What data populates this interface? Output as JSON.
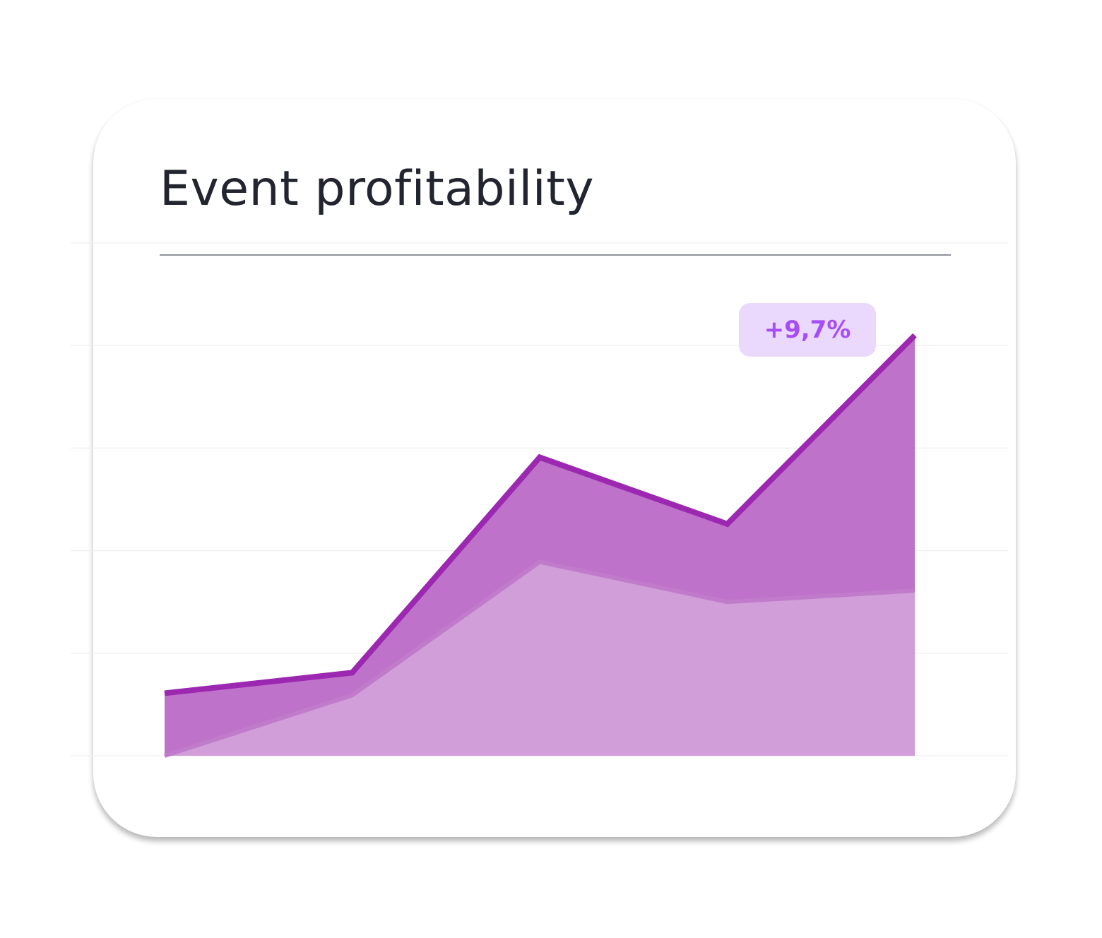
{
  "title": "Event profitability",
  "badge": "+9,7%",
  "chart_data": {
    "type": "area",
    "stacked": false,
    "title": "Event profitability",
    "x": [
      1,
      2,
      3,
      4,
      5
    ],
    "series": [
      {
        "values": [
          0.61,
          0.81,
          2.91,
          2.26,
          4.1
        ],
        "color": "#9c27b0",
        "fill": "#bf72c9"
      },
      {
        "values": [
          0.0,
          0.59,
          1.89,
          1.5,
          1.61
        ],
        "color": "#c07ccb",
        "fill": "#d19ed9"
      }
    ],
    "ylim": [
      0,
      5
    ],
    "grid": true,
    "annotation": "+9,7%",
    "xlabel": "",
    "ylabel": ""
  }
}
